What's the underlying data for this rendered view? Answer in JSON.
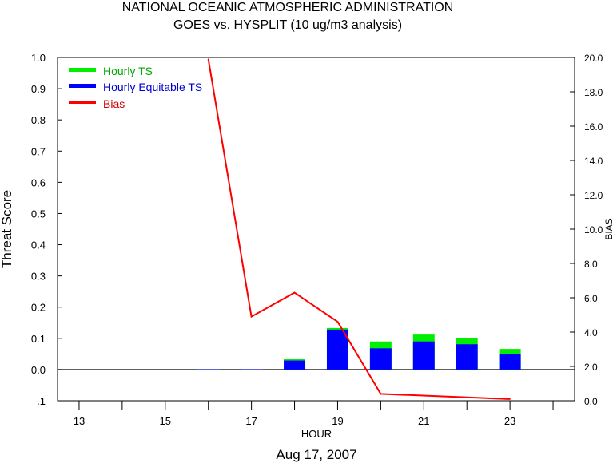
{
  "chart_data": {
    "type": "bar",
    "title": "NATIONAL OCEANIC ATMOSPHERIC ADMINISTRATION",
    "subtitle": "GOES vs. HYSPLIT  (10 ug/m3 analysis)",
    "xlabel": "HOUR",
    "ylabel": "Threat Score",
    "y2label": "BIAS",
    "date_label": "Aug 17, 2007",
    "xlim": [
      12.5,
      24.5
    ],
    "ylim": [
      -0.1,
      1.0
    ],
    "y2lim": [
      0.0,
      20.0
    ],
    "x_ticks": [
      13,
      14,
      15,
      16,
      17,
      18,
      19,
      20,
      21,
      22,
      23,
      24
    ],
    "x_tick_labels": [
      "13",
      "15",
      "17",
      "19",
      "21",
      "23"
    ],
    "x_tick_label_values": [
      13,
      15,
      17,
      19,
      21,
      23
    ],
    "y_ticks": [
      "1.0",
      "0.9",
      "0.8",
      "0.7",
      "0.6",
      "0.5",
      "0.4",
      "0.3",
      "0.2",
      "0.1",
      "0.0",
      "-.1"
    ],
    "y_tick_values": [
      1.0,
      0.9,
      0.8,
      0.7,
      0.6,
      0.5,
      0.4,
      0.3,
      0.2,
      0.1,
      0.0,
      -0.1
    ],
    "y2_ticks": [
      "20.0",
      "18.0",
      "16.0",
      "14.0",
      "12.0",
      "10.0",
      "8.0",
      "6.0",
      "4.0",
      "2.0",
      "0.0"
    ],
    "y2_tick_values": [
      20.0,
      18.0,
      16.0,
      14.0,
      12.0,
      10.0,
      8.0,
      6.0,
      4.0,
      2.0,
      0.0
    ],
    "zero_line_y": 0.0,
    "legend_position": "top-left",
    "legend": [
      "Hourly TS",
      "Hourly Equitable TS",
      "Bias"
    ],
    "colors": {
      "ts": "#00ee00",
      "ets": "#0000ff",
      "bias": "#ff0000",
      "legend_ts_text": "#00aa00",
      "legend_ets_text": "#0000cc",
      "legend_bias_text": "#cc0000"
    },
    "bars": [
      {
        "x": 16,
        "ts": 0.001,
        "ets": 0.001
      },
      {
        "x": 17,
        "ts": 0.001,
        "ets": 0.001
      },
      {
        "x": 18,
        "ts": 0.033,
        "ets": 0.029
      },
      {
        "x": 19,
        "ts": 0.133,
        "ets": 0.128
      },
      {
        "x": 20,
        "ts": 0.09,
        "ets": 0.068
      },
      {
        "x": 21,
        "ts": 0.112,
        "ets": 0.09
      },
      {
        "x": 22,
        "ts": 0.101,
        "ets": 0.081
      },
      {
        "x": 23,
        "ts": 0.066,
        "ets": 0.05
      }
    ],
    "bias": [
      {
        "x": 16,
        "y": 19.9
      },
      {
        "x": 17,
        "y": 4.9
      },
      {
        "x": 18,
        "y": 6.3
      },
      {
        "x": 19,
        "y": 4.6
      },
      {
        "x": 20,
        "y": 0.4
      },
      {
        "x": 23,
        "y": 0.1
      }
    ]
  }
}
